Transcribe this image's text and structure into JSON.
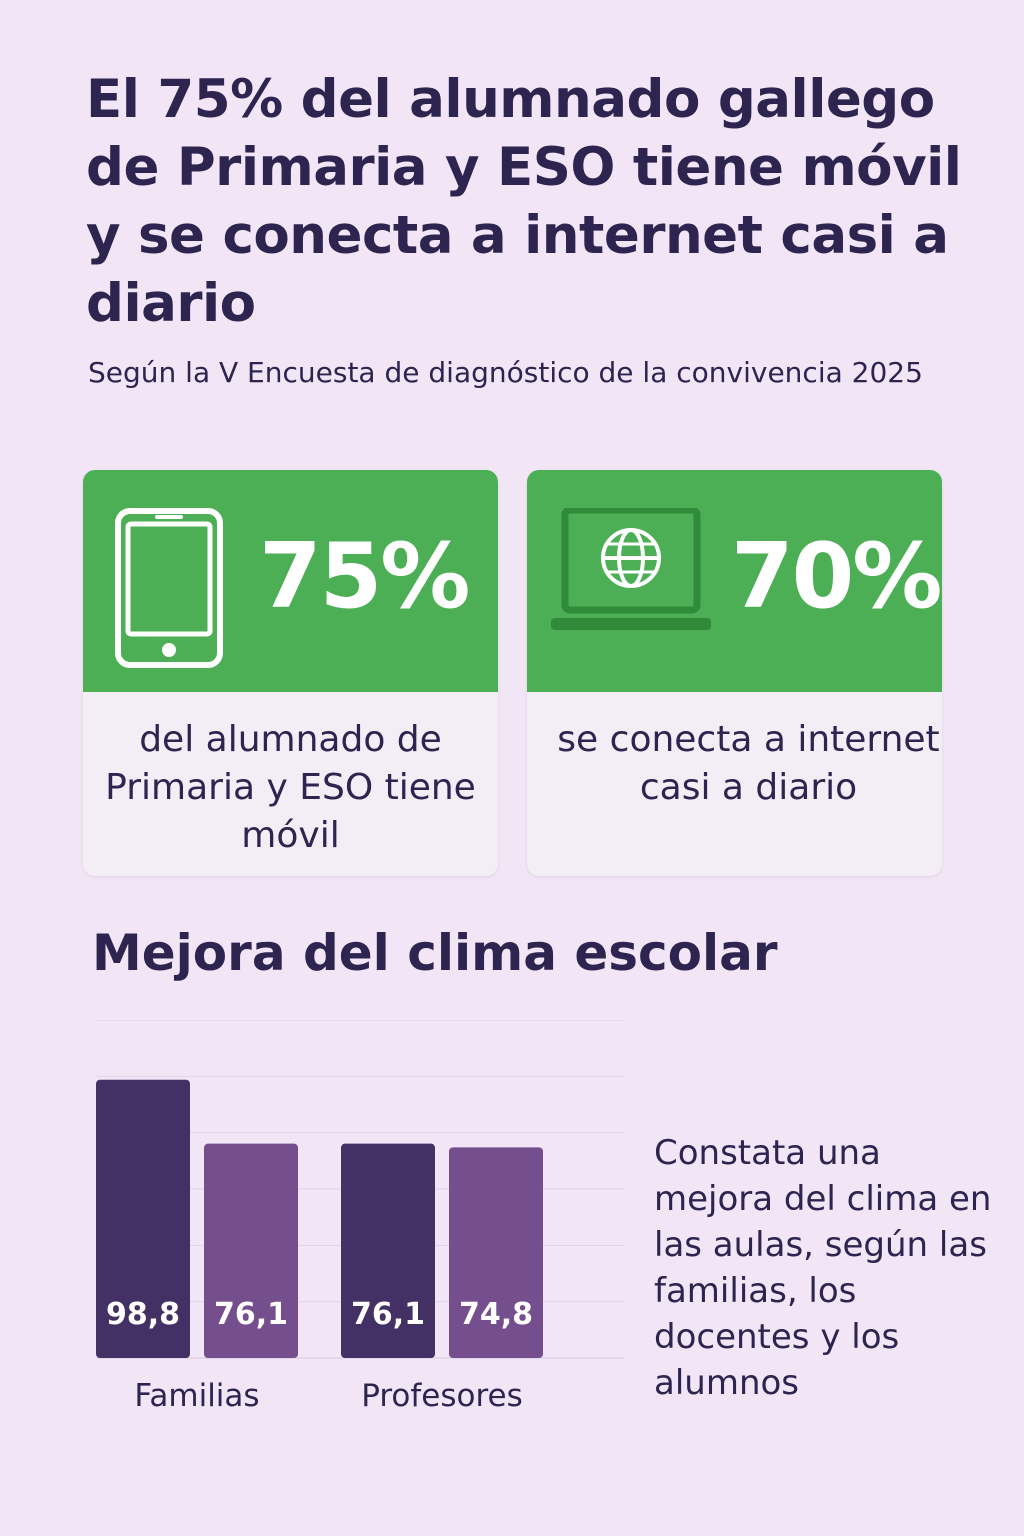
{
  "header": {
    "title": "El 75% del alumnado gallego de Primaria y ESO tiene móvil y se conecta a internet casi a diario",
    "subtitle": "Según la V Encuesta de diagnóstico de la convivencia 2025"
  },
  "cards": [
    {
      "icon": "smartphone-icon",
      "value": "75%",
      "text": "del alumnado de Primaria y ESO tiene móvil"
    },
    {
      "icon": "laptop-globe-icon",
      "value": "70%",
      "text": "se conecta a internet casi a diario"
    }
  ],
  "colors": {
    "card_green": "#4caf55",
    "series_dark": "#433166",
    "series_light": "#744e8d",
    "text": "#2d2450",
    "background": "#f2e6f6"
  },
  "section": {
    "title": "Mejora del clima escolar",
    "side_text": "Constata una mejora del clima en las aulas, según las familias, los docentes y los alumnos"
  },
  "chart_data": {
    "type": "bar",
    "categories": [
      "Familias",
      "Profesores"
    ],
    "series": [
      {
        "values": [
          98.8,
          76.1
        ],
        "labels": [
          "98,8",
          "76,1"
        ],
        "color": "#433166"
      },
      {
        "values": [
          76.1,
          74.8
        ],
        "labels": [
          "76,1",
          "74,8"
        ],
        "color": "#744e8d"
      }
    ],
    "ylim": [
      0,
      120
    ],
    "grid": true,
    "legend": "none",
    "title": "",
    "xlabel": "",
    "ylabel": ""
  }
}
